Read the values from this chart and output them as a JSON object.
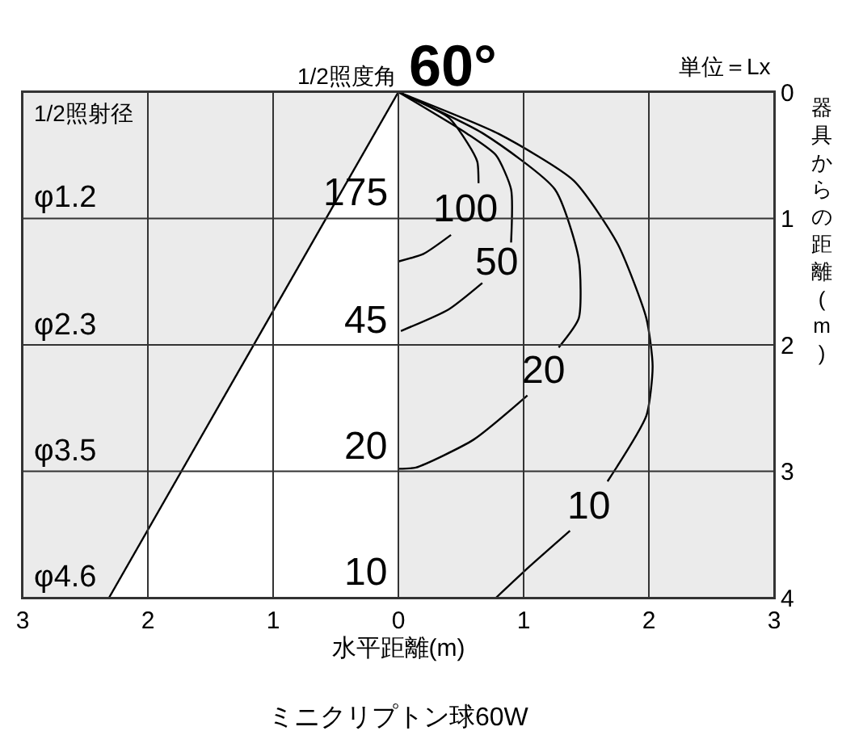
{
  "chart_data": {
    "type": "line",
    "title": "1/2照度角",
    "subtitle": "60°",
    "xlabel": "水平距離(m)",
    "ylabel": "器具からの距離(m)",
    "xlim": [
      -3,
      3
    ],
    "xticks": [
      {
        "value": -3,
        "label": "3"
      },
      {
        "value": -2,
        "label": "2"
      },
      {
        "value": -1,
        "label": "1"
      },
      0,
      1,
      2,
      3
    ],
    "ylim": [
      4,
      0
    ],
    "yticks": [
      0,
      1,
      2,
      3,
      4
    ],
    "grid": true,
    "legend": false,
    "series": [
      {
        "type": "area",
        "color": "#000000",
        "x": [
          0,
          -2.31
        ],
        "values": [
          0,
          4
        ]
      },
      {
        "name": "100",
        "color": "#000000",
        "x": [
          0,
          0.4,
          0.55,
          0.63,
          0.64,
          null,
          0.42,
          0.2,
          0
        ],
        "values": [
          0,
          0.2,
          0.4,
          0.55,
          0.72,
          null,
          1.13,
          1.28,
          1.34
        ]
      },
      {
        "name": "50",
        "color": "#000000",
        "x": [
          0,
          0.55,
          0.78,
          0.9,
          0.9,
          null,
          0.67,
          0.4,
          0.02
        ],
        "values": [
          0,
          0.33,
          0.5,
          0.77,
          1.19,
          null,
          1.51,
          1.72,
          1.89
        ]
      },
      {
        "name": "20",
        "color": "#000000",
        "x": [
          0,
          0.68,
          1.25,
          1.44,
          1.44,
          1.28,
          null,
          1.03,
          0.6,
          0.14,
          0
        ],
        "values": [
          0,
          0.33,
          0.77,
          1.32,
          1.79,
          2.02,
          null,
          2.4,
          2.75,
          2.97,
          2.98
        ]
      },
      {
        "name": "10",
        "color": "#000000",
        "x": [
          0,
          0.8,
          1.4,
          1.75,
          1.98,
          2.03,
          1.98,
          1.67,
          null,
          1.37,
          1.05,
          0.78
        ],
        "values": [
          0,
          0.33,
          0.7,
          1.2,
          1.79,
          2.17,
          2.56,
          3.08,
          null,
          3.47,
          3.75,
          4.0
        ]
      }
    ],
    "annotations": [
      "175",
      "45",
      "20",
      "10",
      "φ1.2",
      "φ2.3",
      "φ3.5",
      "φ4.6",
      "1/2照射径",
      "単位＝Lx",
      "ミニクリプトン球60W"
    ]
  }
}
